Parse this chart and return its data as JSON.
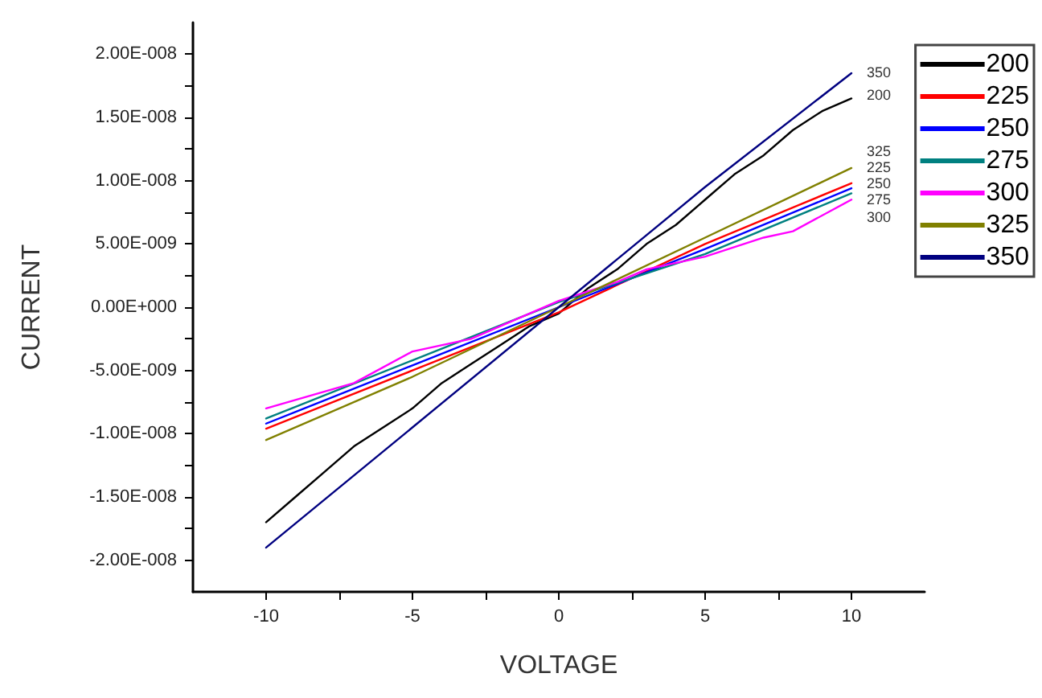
{
  "chart_data": {
    "type": "line",
    "xlabel": "VOLTAGE",
    "ylabel": "CURRENT",
    "xlim": [
      -12.5,
      12.5
    ],
    "xticks": [
      -10,
      {
        "value": -7.5,
        "label": null
      },
      -5,
      {
        "value": -2.5,
        "label": null
      },
      0,
      {
        "value": 2.5,
        "label": null
      },
      5,
      {
        "value": 7.5,
        "label": null
      },
      10
    ],
    "ylim": [
      -2.25e-08,
      2.25e-08
    ],
    "yticks": [
      {
        "value": -2e-08,
        "label": "-2.00E-008"
      },
      {
        "value": -1.75e-08,
        "label": null
      },
      {
        "value": -1.5e-08,
        "label": "-1.50E-008"
      },
      {
        "value": -1.25e-08,
        "label": null
      },
      {
        "value": -1e-08,
        "label": "-1.00E-008"
      },
      {
        "value": -7.5e-09,
        "label": null
      },
      {
        "value": -5e-09,
        "label": "-5.00E-009"
      },
      {
        "value": -2.5e-09,
        "label": null
      },
      {
        "value": 0,
        "label": "0.00E+000"
      },
      {
        "value": 2.5e-09,
        "label": null
      },
      {
        "value": 5e-09,
        "label": "5.00E-009"
      },
      {
        "value": 7.5e-09,
        "label": null
      },
      {
        "value": 1e-08,
        "label": "1.00E-008"
      },
      {
        "value": 1.25e-08,
        "label": null
      },
      {
        "value": 1.5e-08,
        "label": "1.50E-008"
      },
      {
        "value": 1.75e-08,
        "label": null
      },
      {
        "value": 2e-08,
        "label": "2.00E-008"
      }
    ],
    "grid": false,
    "legend": "top right",
    "marker": "none",
    "line_style": "solid",
    "series": [
      {
        "name": "200",
        "color": "#000000",
        "x": [
          -10,
          -9,
          -8,
          -7,
          -6,
          -5,
          -4,
          -3,
          -2,
          -1,
          0,
          1,
          2,
          3,
          4,
          5,
          6,
          7,
          8,
          9,
          10
        ],
        "values": [
          -1.7e-08,
          -1.5e-08,
          -1.3e-08,
          -1.1e-08,
          -9.5e-09,
          -8e-09,
          -6e-09,
          -4.5e-09,
          -3e-09,
          -1.5e-09,
          -5e-10,
          1.5e-09,
          3e-09,
          5e-09,
          6.5e-09,
          8.5e-09,
          1.05e-08,
          1.2e-08,
          1.4e-08,
          1.55e-08,
          1.65e-08
        ]
      },
      {
        "name": "225",
        "color": "#ff0000",
        "x": [
          -10,
          -5,
          0,
          5,
          10
        ],
        "values": [
          -9.6e-09,
          -5e-09,
          -4e-10,
          5e-09,
          9.8e-09
        ]
      },
      {
        "name": "250",
        "color": "#0000ff",
        "x": [
          -10,
          -5,
          0,
          5,
          10
        ],
        "values": [
          -9.2e-09,
          -4.6e-09,
          0,
          4.6e-09,
          9.4e-09
        ]
      },
      {
        "name": "275",
        "color": "#008080",
        "x": [
          -10,
          -5,
          0,
          5,
          10
        ],
        "values": [
          -8.8e-09,
          -4.2e-09,
          4e-10,
          4.2e-09,
          9e-09
        ]
      },
      {
        "name": "300",
        "color": "#ff00ff",
        "x": [
          -10,
          -7,
          -5,
          -3,
          0,
          2,
          3,
          5,
          7,
          8,
          10
        ],
        "values": [
          -8e-09,
          -6e-09,
          -3.5e-09,
          -2.5e-09,
          5e-10,
          2e-09,
          3e-09,
          4e-09,
          5.5e-09,
          6e-09,
          8.5e-09
        ]
      },
      {
        "name": "325",
        "color": "#808000",
        "x": [
          -10,
          -5,
          0,
          5,
          10
        ],
        "values": [
          -1.05e-08,
          -5.5e-09,
          0,
          5.5e-09,
          1.1e-08
        ]
      },
      {
        "name": "350",
        "color": "#000080",
        "x": [
          -10,
          -5,
          0,
          5,
          10
        ],
        "values": [
          -1.9e-08,
          -9.5e-09,
          0,
          9.5e-09,
          1.85e-08
        ]
      }
    ],
    "annotations": [
      "350",
      "200",
      "325",
      "225",
      "250",
      "275",
      "300"
    ]
  }
}
